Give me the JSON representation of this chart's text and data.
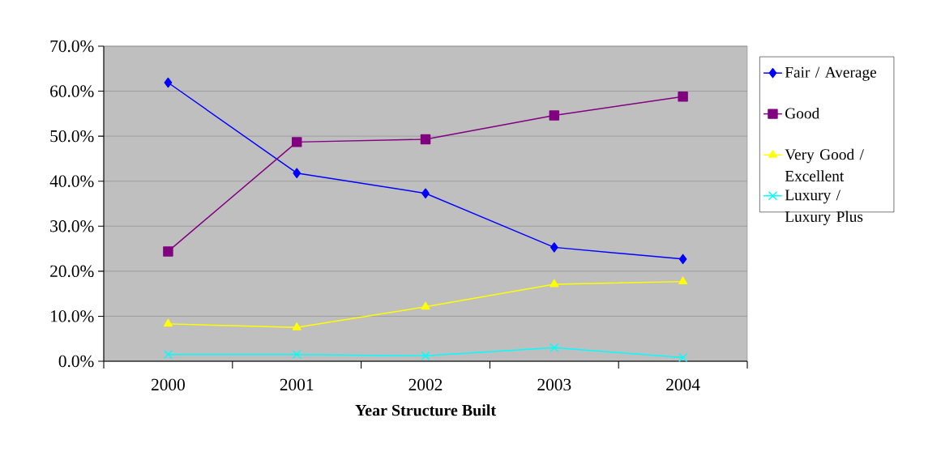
{
  "chart_data": {
    "type": "line",
    "xlabel": "Year Structure Built",
    "categories": [
      "2000",
      "2001",
      "2002",
      "2003",
      "2004"
    ],
    "series": [
      {
        "name": "Fair / Average",
        "color": "#0000ff",
        "marker": "diamond",
        "values": [
          61.9,
          41.8,
          37.3,
          25.3,
          22.7
        ]
      },
      {
        "name": "Good",
        "color": "#800080",
        "marker": "square",
        "values": [
          24.4,
          48.7,
          49.3,
          54.6,
          58.8
        ]
      },
      {
        "name": "Very Good / Excellent",
        "color": "#ffff00",
        "marker": "triangle",
        "values": [
          8.3,
          7.5,
          12.1,
          17.1,
          17.7
        ]
      },
      {
        "name": "Luxury / Luxury Plus",
        "color": "#00ffff",
        "marker": "cross",
        "values": [
          1.5,
          1.5,
          1.2,
          3.0,
          0.8
        ]
      }
    ],
    "ylim": [
      0,
      70
    ],
    "yticks": [
      {
        "value": 0,
        "label": "0.0%"
      },
      {
        "value": 10,
        "label": "10.0%"
      },
      {
        "value": 20,
        "label": "20.0%"
      },
      {
        "value": 30,
        "label": "30.0%"
      },
      {
        "value": 40,
        "label": "40.0%"
      },
      {
        "value": 50,
        "label": "50.0%"
      },
      {
        "value": 60,
        "label": "60.0%"
      },
      {
        "value": 70,
        "label": "70.0%"
      }
    ],
    "grid": "y",
    "legend": "right"
  }
}
